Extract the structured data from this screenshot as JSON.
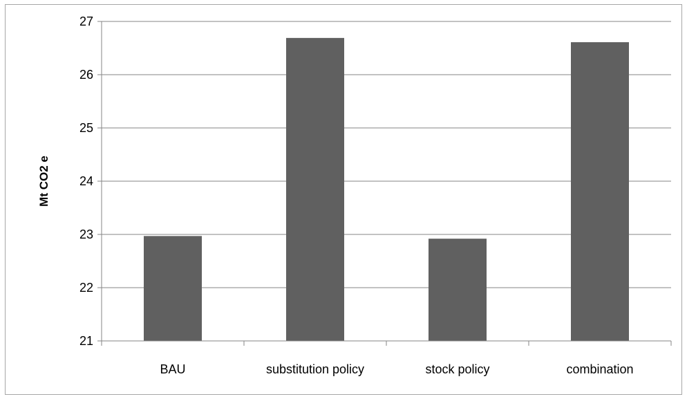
{
  "colors": {
    "bar": "#606060",
    "gridline": "#868686",
    "axis": "#868686",
    "frame": "#a6a6a6"
  },
  "chart_data": {
    "type": "bar",
    "categories": [
      "BAU",
      "substitution policy",
      "stock policy",
      "combination"
    ],
    "values": [
      22.97,
      26.69,
      22.92,
      26.61
    ],
    "title": "",
    "xlabel": "",
    "ylabel": "Mt CO2  e",
    "ylim": [
      21,
      27
    ],
    "yticks": [
      21,
      22,
      23,
      24,
      25,
      26,
      27
    ],
    "grid": true,
    "legend": "none"
  }
}
